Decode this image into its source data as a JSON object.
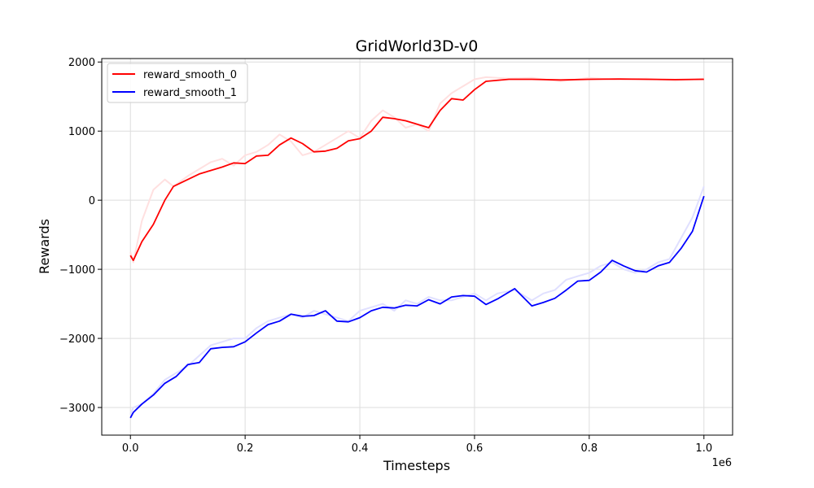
{
  "chart_data": {
    "type": "line",
    "title": "GridWorld3D-v0",
    "xlabel": "Timesteps",
    "ylabel": "Rewards",
    "x_multiplier_label": "1e6",
    "xlim": [
      -0.05,
      1.05
    ],
    "ylim": [
      -3400,
      2050
    ],
    "x_ticks": [
      0.0,
      0.2,
      0.4,
      0.6,
      0.8,
      1.0
    ],
    "x_tick_labels": [
      "0.0",
      "0.2",
      "0.4",
      "0.6",
      "0.8",
      "1.0"
    ],
    "y_ticks": [
      -3000,
      -2000,
      -1000,
      0,
      1000,
      2000
    ],
    "y_tick_labels": [
      "−3000",
      "−2000",
      "−1000",
      "0",
      "1000",
      "2000"
    ],
    "grid": true,
    "legend_position": "top-left",
    "series": [
      {
        "name": "reward_smooth_0",
        "color": "#ff0000",
        "raw_color": "#ffe0e0",
        "x": [
          0.0,
          0.005,
          0.02,
          0.04,
          0.06,
          0.075,
          0.1,
          0.12,
          0.14,
          0.16,
          0.18,
          0.2,
          0.22,
          0.24,
          0.26,
          0.28,
          0.3,
          0.32,
          0.34,
          0.36,
          0.38,
          0.4,
          0.42,
          0.44,
          0.46,
          0.48,
          0.5,
          0.52,
          0.54,
          0.56,
          0.58,
          0.6,
          0.62,
          0.66,
          0.7,
          0.75,
          0.8,
          0.85,
          0.9,
          0.95,
          1.0
        ],
        "y": [
          -800,
          -870,
          -600,
          -350,
          0,
          200,
          300,
          380,
          430,
          480,
          540,
          530,
          640,
          650,
          800,
          900,
          820,
          700,
          710,
          750,
          860,
          890,
          1000,
          1200,
          1180,
          1150,
          1100,
          1050,
          1300,
          1470,
          1450,
          1600,
          1720,
          1750,
          1750,
          1740,
          1750,
          1755,
          1750,
          1745,
          1750
        ],
        "raw_y": [
          -750,
          -900,
          -300,
          150,
          300,
          200,
          350,
          450,
          550,
          600,
          500,
          650,
          700,
          800,
          950,
          850,
          650,
          700,
          800,
          900,
          1000,
          900,
          1150,
          1300,
          1200,
          1050,
          1100,
          1000,
          1400,
          1550,
          1650,
          1750,
          1780,
          1760,
          1770,
          1720,
          1770,
          1740,
          1760,
          1730,
          1760
        ]
      },
      {
        "name": "reward_smooth_1",
        "color": "#0000ff",
        "raw_color": "#e0e0ff",
        "x": [
          0.0,
          0.005,
          0.02,
          0.04,
          0.06,
          0.08,
          0.1,
          0.12,
          0.14,
          0.16,
          0.18,
          0.2,
          0.22,
          0.24,
          0.26,
          0.28,
          0.3,
          0.32,
          0.34,
          0.36,
          0.38,
          0.4,
          0.42,
          0.44,
          0.46,
          0.48,
          0.5,
          0.52,
          0.54,
          0.56,
          0.58,
          0.6,
          0.62,
          0.64,
          0.67,
          0.7,
          0.72,
          0.74,
          0.76,
          0.78,
          0.8,
          0.82,
          0.84,
          0.86,
          0.88,
          0.9,
          0.92,
          0.94,
          0.96,
          0.98,
          1.0
        ],
        "y": [
          -3150,
          -3070,
          -2950,
          -2820,
          -2650,
          -2550,
          -2380,
          -2350,
          -2150,
          -2130,
          -2120,
          -2050,
          -1920,
          -1800,
          -1750,
          -1650,
          -1680,
          -1670,
          -1600,
          -1750,
          -1760,
          -1700,
          -1600,
          -1550,
          -1560,
          -1520,
          -1530,
          -1440,
          -1500,
          -1400,
          -1380,
          -1390,
          -1510,
          -1430,
          -1280,
          -1530,
          -1480,
          -1420,
          -1300,
          -1170,
          -1160,
          -1040,
          -870,
          -950,
          -1020,
          -1040,
          -950,
          -900,
          -700,
          -450,
          60
        ],
        "raw_y": [
          -3100,
          -3000,
          -2950,
          -2800,
          -2600,
          -2500,
          -2400,
          -2250,
          -2100,
          -2050,
          -2000,
          -2000,
          -1850,
          -1750,
          -1700,
          -1650,
          -1700,
          -1600,
          -1650,
          -1700,
          -1750,
          -1600,
          -1550,
          -1500,
          -1600,
          -1450,
          -1500,
          -1400,
          -1450,
          -1450,
          -1400,
          -1350,
          -1450,
          -1350,
          -1300,
          -1450,
          -1350,
          -1300,
          -1150,
          -1100,
          -1050,
          -950,
          -900,
          -1000,
          -1050,
          -1000,
          -900,
          -850,
          -550,
          -250,
          200
        ]
      }
    ]
  }
}
